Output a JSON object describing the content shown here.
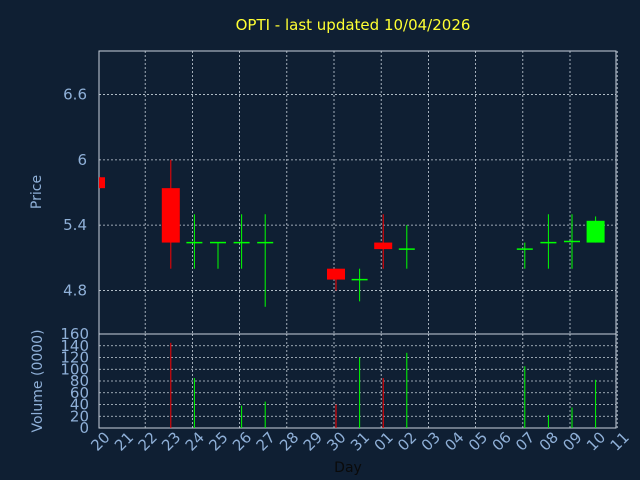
{
  "chart_data": {
    "type": "candlestick",
    "title": "OPTI - last updated 10/04/2026",
    "xlabel": "Day",
    "x_tick_labels": [
      "20",
      "21",
      "22",
      "23",
      "24",
      "25",
      "26",
      "27",
      "28",
      "29",
      "30",
      "31",
      "01",
      "02",
      "03",
      "04",
      "05",
      "06",
      "07",
      "08",
      "09",
      "10",
      "11"
    ],
    "price_panel": {
      "ylabel": "Price",
      "yticks": [
        "6.6",
        "6",
        "5.4",
        "4.8"
      ],
      "ylim": [
        4.4,
        7.0
      ],
      "candles": [
        {
          "day": "20",
          "open": 5.84,
          "close": 5.74,
          "high": 5.84,
          "low": 5.74
        },
        {
          "day": "23",
          "open": 5.74,
          "close": 5.24,
          "high": 6.0,
          "low": 5.0
        },
        {
          "day": "24",
          "open": 5.24,
          "close": 5.24,
          "high": 5.5,
          "low": 5.0
        },
        {
          "day": "25",
          "open": 5.24,
          "close": 5.24,
          "high": 5.24,
          "low": 5.0
        },
        {
          "day": "26",
          "open": 5.24,
          "close": 5.24,
          "high": 5.5,
          "low": 5.0
        },
        {
          "day": "27",
          "open": 5.24,
          "close": 5.24,
          "high": 5.5,
          "low": 4.65
        },
        {
          "day": "30",
          "open": 5.0,
          "close": 4.9,
          "high": 5.0,
          "low": 4.8
        },
        {
          "day": "31",
          "open": 4.9,
          "close": 4.9,
          "high": 5.0,
          "low": 4.7
        },
        {
          "day": "01",
          "open": 5.24,
          "close": 5.18,
          "high": 5.5,
          "low": 5.0
        },
        {
          "day": "02",
          "open": 5.18,
          "close": 5.18,
          "high": 5.4,
          "low": 5.0
        },
        {
          "day": "07",
          "open": 5.18,
          "close": 5.18,
          "high": 5.24,
          "low": 5.0
        },
        {
          "day": "08",
          "open": 5.24,
          "close": 5.24,
          "high": 5.5,
          "low": 5.0
        },
        {
          "day": "09",
          "open": 5.25,
          "close": 5.25,
          "high": 5.5,
          "low": 5.0
        },
        {
          "day": "10",
          "open": 5.24,
          "close": 5.44,
          "high": 5.48,
          "low": 5.24
        }
      ],
      "colors": {
        "up": "#00ff00",
        "down": "#ff0000"
      }
    },
    "volume_panel": {
      "ylabel": "Volume (0000)",
      "yticks": [
        "160",
        "140",
        "120",
        "100",
        "80",
        "60",
        "40",
        "20",
        "0"
      ],
      "ylim": [
        0,
        160
      ],
      "bars": [
        {
          "day": "23",
          "value": 145,
          "color": "#ff0000"
        },
        {
          "day": "24",
          "value": 85,
          "color": "#00ff00"
        },
        {
          "day": "26",
          "value": 38,
          "color": "#00ff00"
        },
        {
          "day": "27",
          "value": 45,
          "color": "#00ff00"
        },
        {
          "day": "30",
          "value": 40,
          "color": "#ff0000"
        },
        {
          "day": "31",
          "value": 120,
          "color": "#00ff00"
        },
        {
          "day": "01",
          "value": 85,
          "color": "#ff0000"
        },
        {
          "day": "02",
          "value": 128,
          "color": "#00ff00"
        },
        {
          "day": "07",
          "value": 105,
          "color": "#00ff00"
        },
        {
          "day": "08",
          "value": 22,
          "color": "#00ff00"
        },
        {
          "day": "09",
          "value": 35,
          "color": "#00ff00"
        },
        {
          "day": "10",
          "value": 82,
          "color": "#00ff00"
        }
      ]
    },
    "grid": true,
    "colors": {
      "background": "#0f1f33",
      "title": "#ffff33",
      "axis_text": "#8fb0d8",
      "frame": "#c8d2dc"
    }
  }
}
